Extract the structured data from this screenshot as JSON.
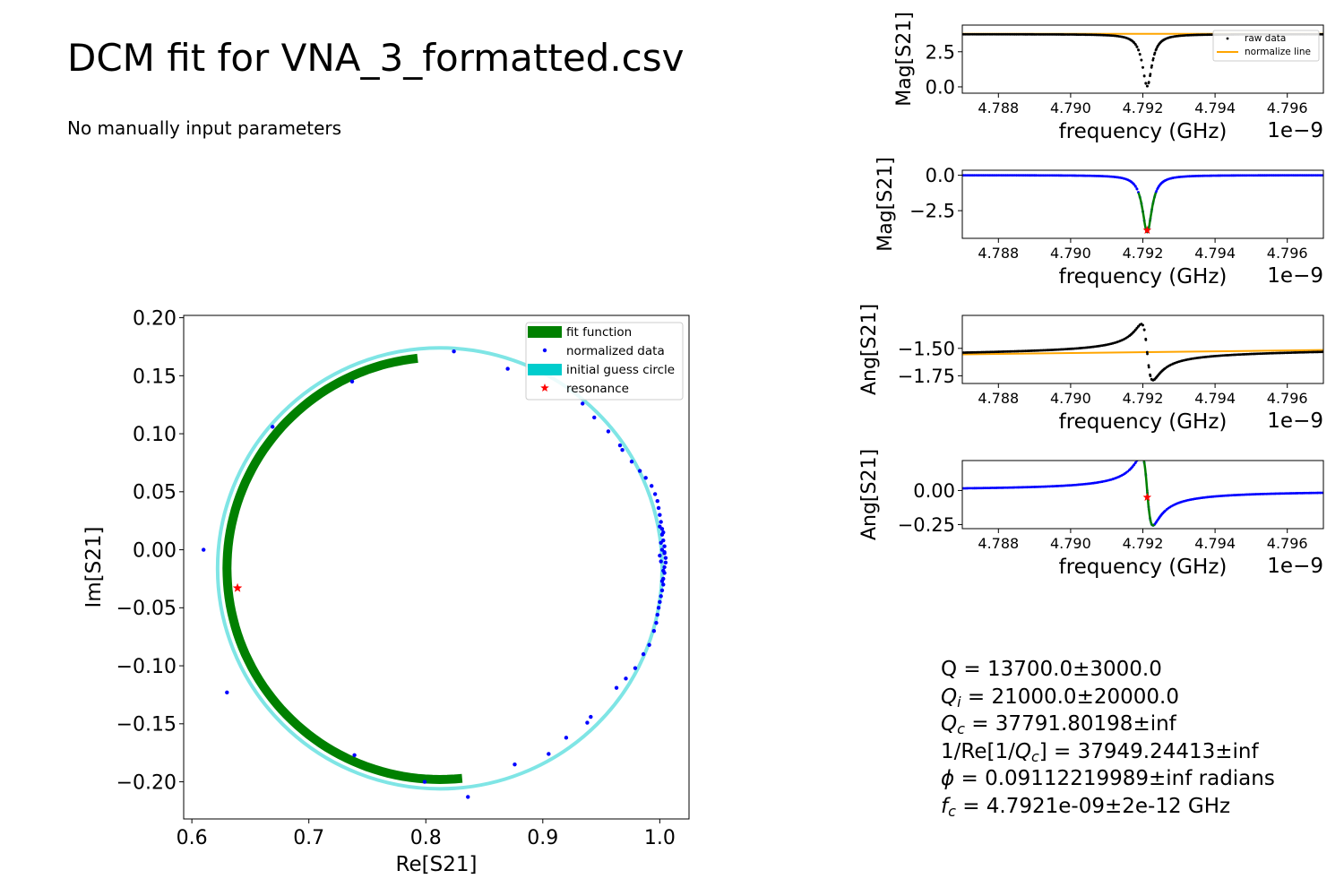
{
  "header": {
    "title": "DCM fit for VNA_3_formatted.csv",
    "subtitle": "No manually input parameters"
  },
  "results": {
    "q": "Q = 13700.0±3000.0",
    "qi_symbol": "Q",
    "qi_sub": "i",
    "qi_value": " = 21000.0±20000.0",
    "qc_symbol": "Q",
    "qc_sub": "c",
    "qc_value": " = 37791.80198±inf",
    "reqc_prefix": "1/Re[1/",
    "reqc_symbol": "Q",
    "reqc_sub": "c",
    "reqc_value": "] = 37949.24413±inf",
    "phi_symbol": "ϕ",
    "phi_value": " = 0.09112219989±inf radians",
    "fc_symbol": "f",
    "fc_sub": "c",
    "fc_value": " = 4.7921e-09±2e-12 GHz"
  },
  "colors": {
    "raw": "#000000",
    "normalized": "#0000ff",
    "fit": "#008000",
    "guess_circle": "#7fe5e5",
    "guess_legend": "#00cccc",
    "resonance": "#ff0000",
    "normalize_line": "#ffa500"
  },
  "chart_data": [
    {
      "id": "iq",
      "type": "scatter",
      "xlabel": "Re[S21]",
      "ylabel": "Im[S21]",
      "xlim": [
        0.593,
        1.025
      ],
      "ylim": [
        -0.232,
        0.202
      ],
      "xticks": [
        0.6,
        0.7,
        0.8,
        0.9,
        1.0
      ],
      "xtick_labels": [
        "0.6",
        "0.7",
        "0.8",
        "0.9",
        "1.0"
      ],
      "yticks": [
        -0.2,
        -0.15,
        -0.1,
        -0.05,
        0.0,
        0.05,
        0.1,
        0.15,
        0.2
      ],
      "ytick_labels": [
        "−0.20",
        "−0.15",
        "−0.10",
        "−0.05",
        "0.00",
        "0.05",
        "0.10",
        "0.15",
        "0.20"
      ],
      "legend": {
        "position": "top-right",
        "entries": [
          "fit function",
          "normalized data",
          "initial guess circle",
          "resonance"
        ]
      },
      "initial_guess_circle": {
        "center": [
          0.812,
          -0.016
        ],
        "radius": 0.19
      },
      "fit_function": {
        "center": [
          0.812,
          -0.016
        ],
        "radius": 0.182,
        "theta_start_deg": 96,
        "theta_end_deg": 277
      },
      "resonance": [
        0.639,
        -0.033
      ],
      "normalized_data": [
        [
          0.61,
          0.0
        ],
        [
          0.63,
          -0.123
        ],
        [
          0.669,
          0.106
        ],
        [
          0.737,
          0.145
        ],
        [
          0.739,
          -0.177
        ],
        [
          0.799,
          -0.2
        ],
        [
          0.824,
          0.171
        ],
        [
          0.836,
          -0.213
        ],
        [
          0.87,
          0.156
        ],
        [
          0.876,
          -0.185
        ],
        [
          0.905,
          -0.176
        ],
        [
          0.92,
          -0.162
        ],
        [
          0.934,
          0.126
        ],
        [
          0.938,
          -0.149
        ],
        [
          0.941,
          -0.144
        ],
        [
          0.944,
          0.114
        ],
        [
          0.956,
          0.102
        ],
        [
          0.963,
          -0.119
        ],
        [
          0.966,
          0.09
        ],
        [
          0.968,
          0.086
        ],
        [
          0.971,
          -0.111
        ],
        [
          0.976,
          0.076
        ],
        [
          0.979,
          -0.102
        ],
        [
          0.983,
          0.068
        ],
        [
          0.986,
          -0.09
        ],
        [
          0.988,
          0.062
        ],
        [
          0.991,
          -0.082
        ],
        [
          0.993,
          0.055
        ],
        [
          0.995,
          -0.07
        ],
        [
          0.996,
          0.048
        ],
        [
          0.997,
          -0.063
        ],
        [
          0.998,
          0.042
        ],
        [
          0.998,
          -0.056
        ],
        [
          0.999,
          0.036
        ],
        [
          0.999,
          -0.05
        ],
        [
          1.0,
          0.03
        ],
        [
          1.0,
          -0.045
        ],
        [
          1.001,
          0.024
        ],
        [
          1.001,
          -0.04
        ],
        [
          1.002,
          0.018
        ],
        [
          1.002,
          -0.035
        ],
        [
          1.002,
          0.013
        ],
        [
          1.003,
          -0.03
        ],
        [
          1.003,
          0.008
        ],
        [
          1.003,
          -0.025
        ],
        [
          1.004,
          0.003
        ],
        [
          1.004,
          -0.02
        ],
        [
          1.004,
          -0.002
        ],
        [
          1.004,
          -0.015
        ],
        [
          1.005,
          -0.007
        ],
        [
          1.005,
          -0.011
        ],
        [
          1.002,
          0.0
        ],
        [
          1.001,
          -0.01
        ],
        [
          1.003,
          0.015
        ],
        [
          1.0,
          -0.005
        ],
        [
          1.003,
          -0.018
        ],
        [
          1.001,
          0.006
        ],
        [
          1.002,
          -0.027
        ],
        [
          1.0,
          0.02
        ],
        [
          1.004,
          -0.003
        ]
      ]
    },
    {
      "id": "mag_raw",
      "type": "scatter",
      "xlabel": "frequency (GHz)",
      "ylabel": "Mag[S21]",
      "offset_text": "1e−9",
      "xlim": [
        4.787,
        4.797
      ],
      "ylim": [
        -0.45,
        4.4
      ],
      "xticks": [
        4.788,
        4.79,
        4.792,
        4.794,
        4.796
      ],
      "xtick_labels": [
        "4.788",
        "4.790",
        "4.792",
        "4.794",
        "4.796"
      ],
      "yticks": [
        0.0,
        2.5
      ],
      "ytick_labels": [
        "0.0",
        "2.5"
      ],
      "legend": {
        "position": "top-right",
        "entries": [
          "raw data",
          "normalize line"
        ]
      },
      "baseline": 3.75,
      "dip_depth": 3.7,
      "resonance_x": 4.79212,
      "half_width": 0.00016,
      "normalize_line": [
        [
          4.787,
          3.78
        ],
        [
          4.797,
          3.78
        ]
      ]
    },
    {
      "id": "mag_norm",
      "type": "scatter",
      "xlabel": "frequency (GHz)",
      "ylabel": "Mag[S21]",
      "offset_text": "1e−9",
      "xlim": [
        4.787,
        4.797
      ],
      "ylim": [
        -4.45,
        0.35
      ],
      "xticks": [
        4.788,
        4.79,
        4.792,
        4.794,
        4.796
      ],
      "xtick_labels": [
        "4.788",
        "4.790",
        "4.792",
        "4.794",
        "4.796"
      ],
      "yticks": [
        -2.5,
        0.0
      ],
      "ytick_labels": [
        "−2.5",
        "0.0"
      ],
      "baseline": 0.0,
      "dip_depth": 4.0,
      "resonance_x": 4.79212,
      "half_width": 0.00016,
      "resonance": [
        4.79212,
        -3.88
      ],
      "fit_range": [
        4.79188,
        4.79236
      ]
    },
    {
      "id": "ang_raw",
      "type": "scatter",
      "xlabel": "frequency (GHz)",
      "ylabel": "Ang[S21]",
      "offset_text": "1e−9",
      "xlim": [
        4.787,
        4.797
      ],
      "ylim": [
        -1.82,
        -1.2
      ],
      "xticks": [
        4.788,
        4.79,
        4.792,
        4.794,
        4.796
      ],
      "xtick_labels": [
        "4.788",
        "4.790",
        "4.792",
        "4.794",
        "4.796"
      ],
      "yticks": [
        -1.75,
        -1.5
      ],
      "ytick_labels": [
        "−1.75",
        "−1.50"
      ],
      "baseline_start": -1.555,
      "baseline_end": -1.515,
      "swing": 0.27,
      "resonance_x": 4.79212,
      "half_width": 0.00016,
      "normalize_line": [
        [
          4.787,
          -1.555
        ],
        [
          4.797,
          -1.515
        ]
      ]
    },
    {
      "id": "ang_norm",
      "type": "scatter",
      "xlabel": "frequency (GHz)",
      "ylabel": "Ang[S21]",
      "offset_text": "1e−9",
      "xlim": [
        4.787,
        4.797
      ],
      "ylim": [
        -0.28,
        0.22
      ],
      "xticks": [
        4.788,
        4.79,
        4.792,
        4.794,
        4.796
      ],
      "xtick_labels": [
        "4.788",
        "4.790",
        "4.792",
        "4.794",
        "4.796"
      ],
      "yticks": [
        -0.25,
        0.0
      ],
      "ytick_labels": [
        "−0.25",
        "0.00"
      ],
      "baseline_start": 0.0,
      "baseline_end": 0.0,
      "swing": 0.27,
      "resonance_x": 4.79212,
      "half_width": 0.00016,
      "resonance": [
        4.79212,
        -0.05
      ],
      "fit_range": [
        4.79192,
        4.79232
      ]
    }
  ]
}
